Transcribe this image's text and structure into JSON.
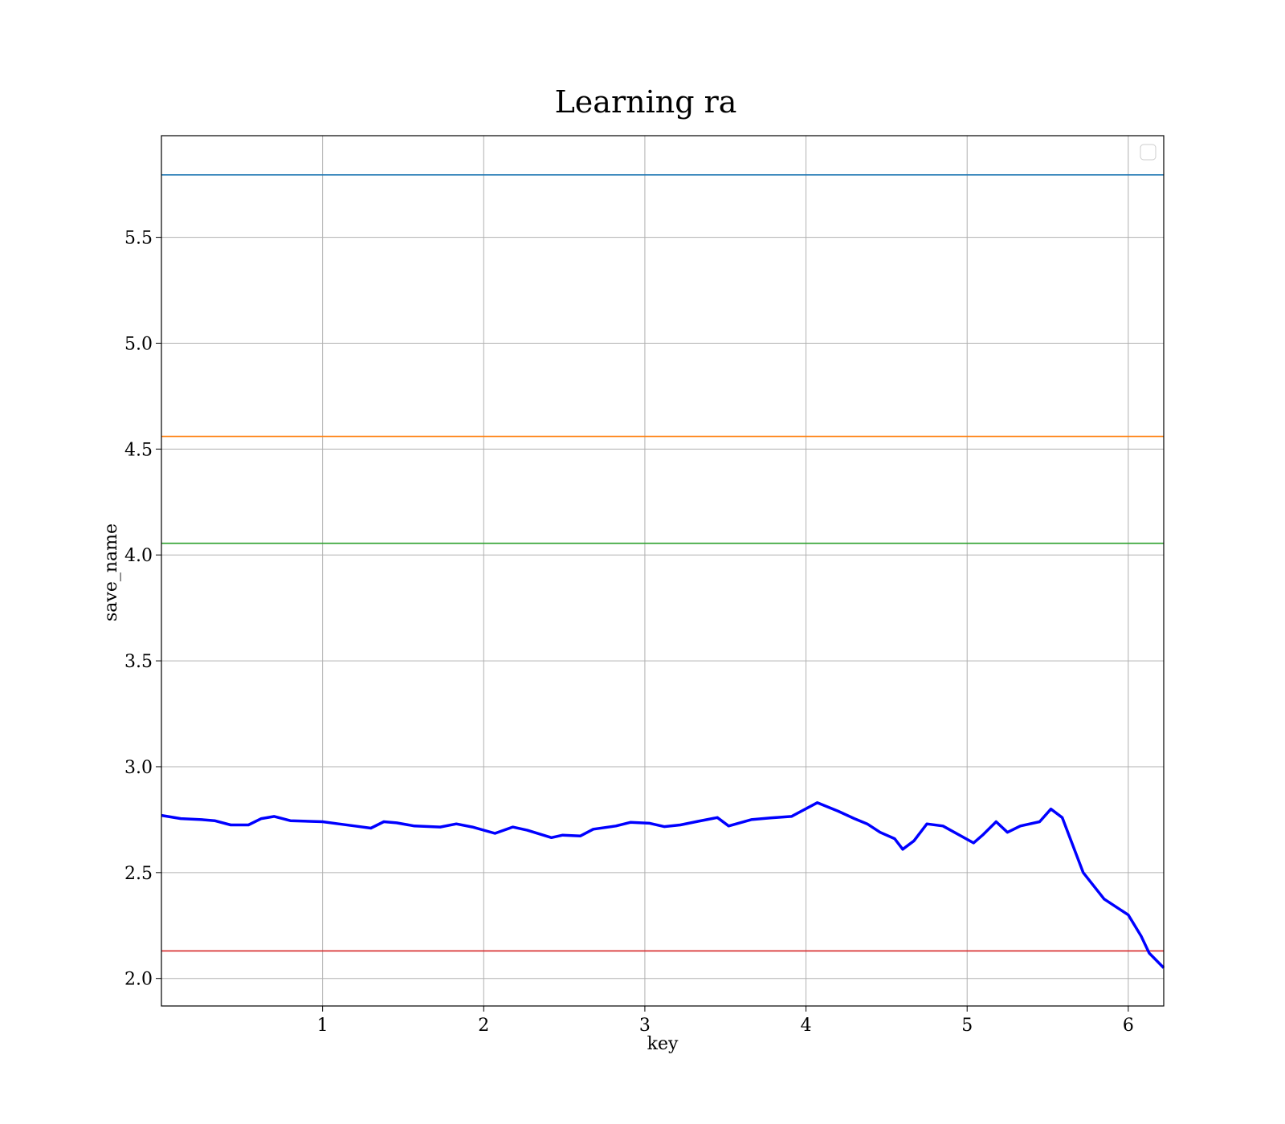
{
  "chart_data": {
    "type": "line",
    "title": "Learning ra",
    "xlabel": "key",
    "ylabel": "save_name",
    "xlim": [
      0,
      6.22
    ],
    "ylim": [
      1.87,
      5.98
    ],
    "xticks": [
      "1",
      "2",
      "3",
      "4",
      "5",
      "6"
    ],
    "yticks": [
      "2.0",
      "2.5",
      "3.0",
      "3.5",
      "4.0",
      "4.5",
      "5.0",
      "5.5"
    ],
    "grid": true,
    "legend": {
      "placement": "top-right",
      "entries": []
    },
    "hlines": [
      {
        "y": 5.795,
        "color": "#1f77b4"
      },
      {
        "y": 4.56,
        "color": "#ff7f0e"
      },
      {
        "y": 4.055,
        "color": "#2ca02c"
      },
      {
        "y": 2.13,
        "color": "#d62728"
      }
    ],
    "series": [
      {
        "color": "#0000ff",
        "x": [
          0,
          0.12,
          0.25,
          0.33,
          0.43,
          0.54,
          0.62,
          0.7,
          0.8,
          1.0,
          1.1,
          1.2,
          1.3,
          1.38,
          1.46,
          1.57,
          1.73,
          1.83,
          1.93,
          2.07,
          2.18,
          2.27,
          2.42,
          2.49,
          2.6,
          2.68,
          2.82,
          2.91,
          3.03,
          3.12,
          3.22,
          3.33,
          3.45,
          3.52,
          3.66,
          3.78,
          3.91,
          4.07,
          4.2,
          4.3,
          4.38,
          4.46,
          4.55,
          4.6,
          4.67,
          4.75,
          4.85,
          5.04,
          5.1,
          5.18,
          5.25,
          5.33,
          5.45,
          5.52,
          5.59,
          5.72,
          5.85,
          6.0,
          6.08,
          6.13,
          6.22
        ],
        "y": [
          2.77,
          2.755,
          2.75,
          2.745,
          2.725,
          2.725,
          2.755,
          2.765,
          2.745,
          2.74,
          2.73,
          2.72,
          2.71,
          2.74,
          2.735,
          2.72,
          2.715,
          2.73,
          2.715,
          2.685,
          2.715,
          2.7,
          2.665,
          2.677,
          2.673,
          2.705,
          2.72,
          2.737,
          2.733,
          2.717,
          2.725,
          2.742,
          2.76,
          2.72,
          2.75,
          2.758,
          2.765,
          2.83,
          2.79,
          2.755,
          2.73,
          2.69,
          2.66,
          2.61,
          2.65,
          2.73,
          2.72,
          2.64,
          2.68,
          2.74,
          2.69,
          2.72,
          2.74,
          2.8,
          2.76,
          2.5,
          2.375,
          2.3,
          2.2,
          2.12,
          2.05
        ]
      }
    ]
  }
}
